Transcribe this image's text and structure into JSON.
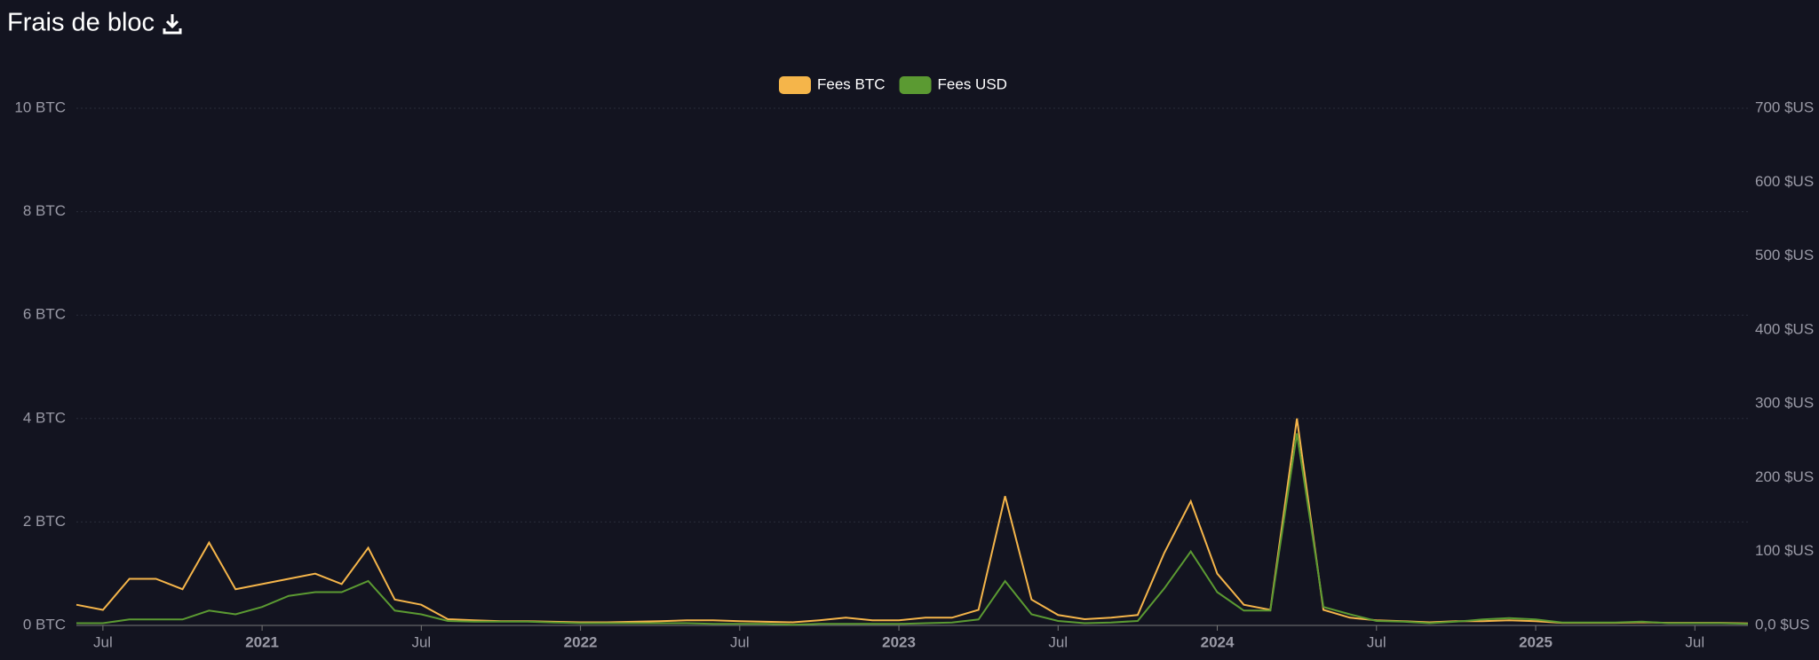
{
  "chart_data": {
    "type": "line",
    "title": "Frais de bloc",
    "x": [
      "2020-06",
      "2020-07",
      "2020-08",
      "2020-09",
      "2020-10",
      "2020-11",
      "2020-12",
      "2021-01",
      "2021-02",
      "2021-03",
      "2021-04",
      "2021-05",
      "2021-06",
      "2021-07",
      "2021-08",
      "2021-09",
      "2021-10",
      "2021-11",
      "2021-12",
      "2022-01",
      "2022-02",
      "2022-03",
      "2022-04",
      "2022-05",
      "2022-06",
      "2022-07",
      "2022-08",
      "2022-09",
      "2022-10",
      "2022-11",
      "2022-12",
      "2023-01",
      "2023-02",
      "2023-03",
      "2023-04",
      "2023-05",
      "2023-06",
      "2023-07",
      "2023-08",
      "2023-09",
      "2023-10",
      "2023-11",
      "2023-12",
      "2024-01",
      "2024-02",
      "2024-03",
      "2024-04",
      "2024-05",
      "2024-06",
      "2024-07",
      "2024-08",
      "2024-09",
      "2024-10",
      "2024-11",
      "2024-12",
      "2025-01",
      "2025-02",
      "2025-03",
      "2025-04",
      "2025-05",
      "2025-06",
      "2025-07",
      "2025-08",
      "2025-09"
    ],
    "series": [
      {
        "name": "Fees BTC",
        "color": "#f5b54a",
        "values": [
          0.4,
          0.3,
          0.9,
          0.9,
          0.7,
          1.6,
          0.7,
          0.8,
          0.9,
          1.0,
          0.8,
          1.5,
          0.5,
          0.4,
          0.12,
          0.1,
          0.08,
          0.08,
          0.07,
          0.06,
          0.06,
          0.07,
          0.08,
          0.1,
          0.1,
          0.08,
          0.07,
          0.06,
          0.1,
          0.15,
          0.1,
          0.1,
          0.15,
          0.15,
          0.3,
          2.5,
          0.5,
          0.2,
          0.12,
          0.15,
          0.2,
          1.4,
          2.4,
          1.0,
          0.4,
          0.3,
          4.0,
          0.3,
          0.15,
          0.1,
          0.08,
          0.06,
          0.08,
          0.08,
          0.1,
          0.08,
          0.05,
          0.05,
          0.05,
          0.06,
          0.05,
          0.05,
          0.05,
          0.04
        ]
      },
      {
        "name": "Fees USD",
        "color": "#5b9a32",
        "axis": "y2",
        "values": [
          3,
          3,
          8,
          8,
          8,
          20,
          15,
          25,
          40,
          45,
          45,
          60,
          20,
          15,
          6,
          5,
          5,
          5,
          4,
          3,
          3,
          3,
          3,
          3,
          2,
          2,
          2,
          1,
          2,
          2,
          2,
          2,
          3,
          4,
          8,
          60,
          15,
          6,
          3,
          4,
          6,
          50,
          100,
          45,
          20,
          20,
          260,
          25,
          15,
          6,
          5,
          3,
          5,
          8,
          10,
          8,
          4,
          4,
          4,
          5,
          3,
          3,
          3,
          2
        ]
      }
    ],
    "xlim": [
      "2020-06",
      "2025-09"
    ],
    "xticks": [
      {
        "value": "2020-07",
        "label": "Jul"
      },
      {
        "value": "2021-01",
        "label": "2021"
      },
      {
        "value": "2021-07",
        "label": "Jul"
      },
      {
        "value": "2022-01",
        "label": "2022"
      },
      {
        "value": "2022-07",
        "label": "Jul"
      },
      {
        "value": "2023-01",
        "label": "2023"
      },
      {
        "value": "2023-07",
        "label": "Jul"
      },
      {
        "value": "2024-01",
        "label": "2024"
      },
      {
        "value": "2024-07",
        "label": "Jul"
      },
      {
        "value": "2025-01",
        "label": "2025"
      },
      {
        "value": "2025-07",
        "label": "Jul"
      }
    ],
    "ylim": [
      0,
      10
    ],
    "yticks": [
      {
        "value": 0,
        "label": "0 BTC"
      },
      {
        "value": 2,
        "label": "2 BTC"
      },
      {
        "value": 4,
        "label": "4 BTC"
      },
      {
        "value": 6,
        "label": "6 BTC"
      },
      {
        "value": 8,
        "label": "8 BTC"
      },
      {
        "value": 10,
        "label": "10 BTC"
      }
    ],
    "y2lim": [
      0,
      700
    ],
    "y2ticks": [
      {
        "value": 0,
        "label": "0,0 $US"
      },
      {
        "value": 100,
        "label": "100 $US"
      },
      {
        "value": 200,
        "label": "200 $US"
      },
      {
        "value": 300,
        "label": "300 $US"
      },
      {
        "value": 400,
        "label": "400 $US"
      },
      {
        "value": 500,
        "label": "500 $US"
      },
      {
        "value": 600,
        "label": "600 $US"
      },
      {
        "value": 700,
        "label": "700 $US"
      }
    ],
    "grid": true
  }
}
